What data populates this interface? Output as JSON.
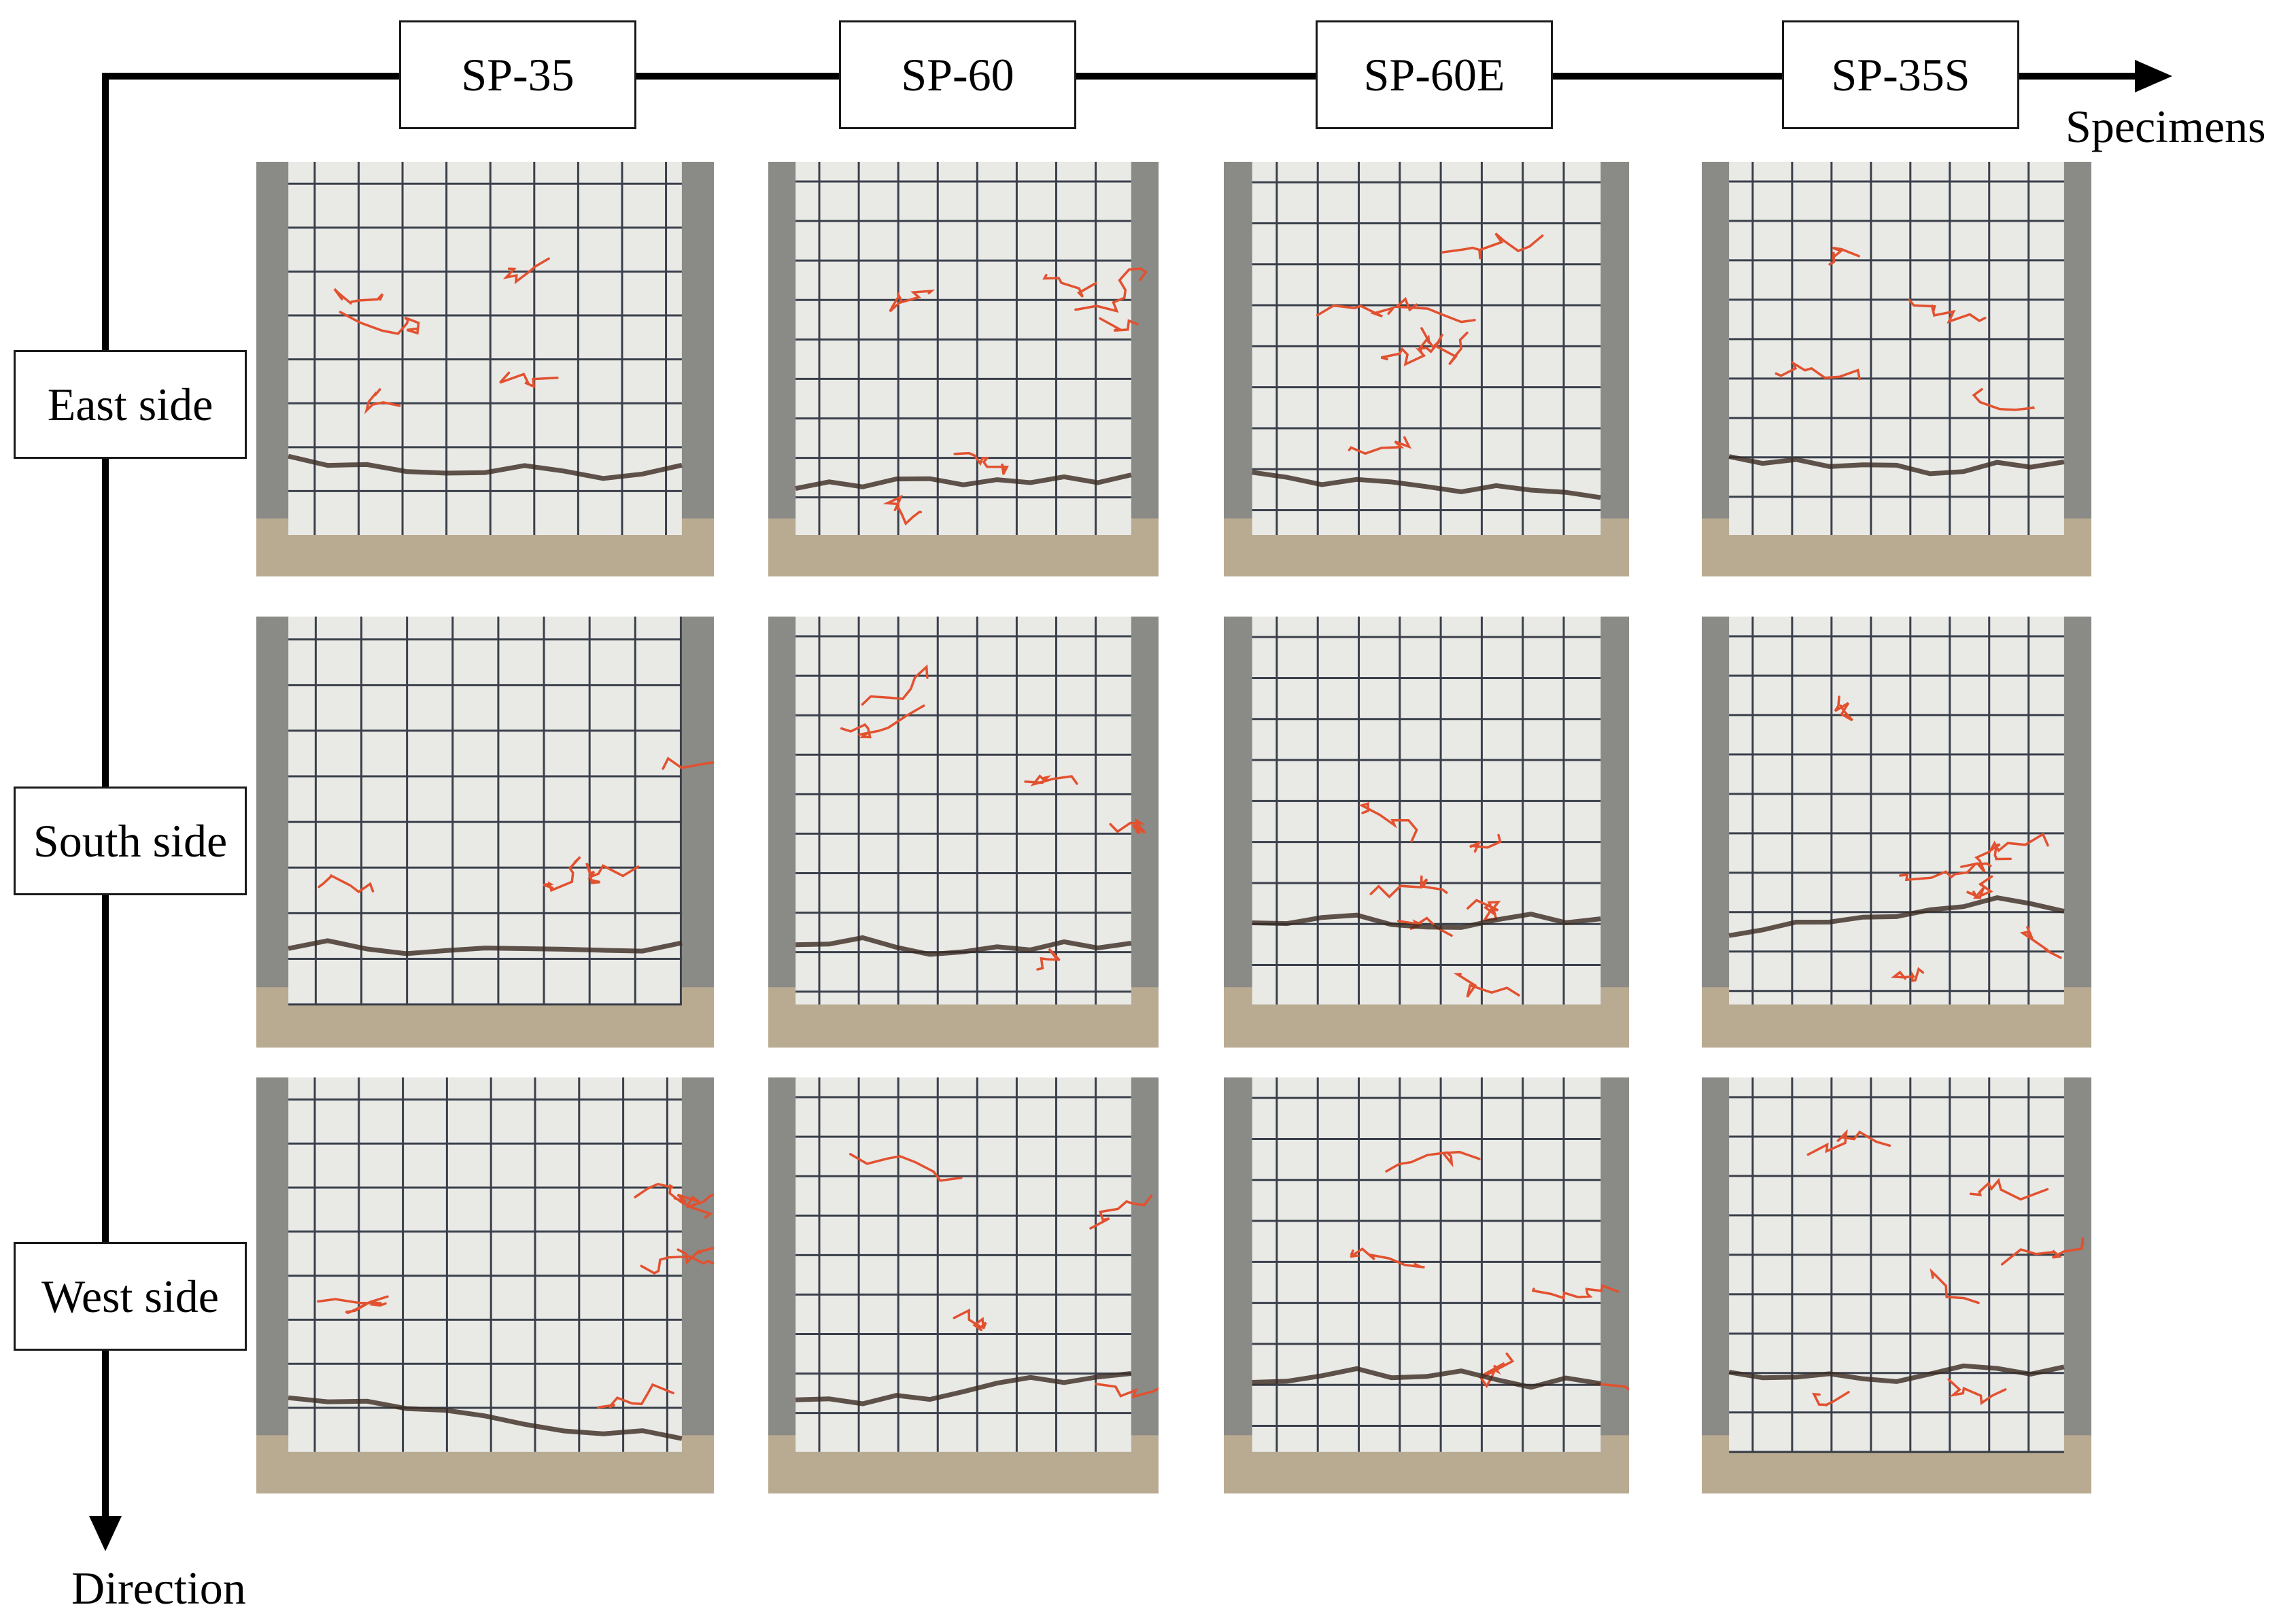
{
  "axes": {
    "horizontal_label": "Specimens",
    "vertical_label": "Direction"
  },
  "specimens": [
    "SP-35",
    "SP-60",
    "SP-60E",
    "SP-35S"
  ],
  "directions": [
    "East side",
    "South side",
    "West side"
  ],
  "photo_grid": {
    "rows": 3,
    "cols": 4,
    "content": "photographs of the tested specimens after failure"
  },
  "colors": {
    "concrete": "#e9e9e6",
    "grid_lines": "#1c2330",
    "crack_markings": "#e2512f",
    "background_surroundings": "#8a8a86"
  }
}
